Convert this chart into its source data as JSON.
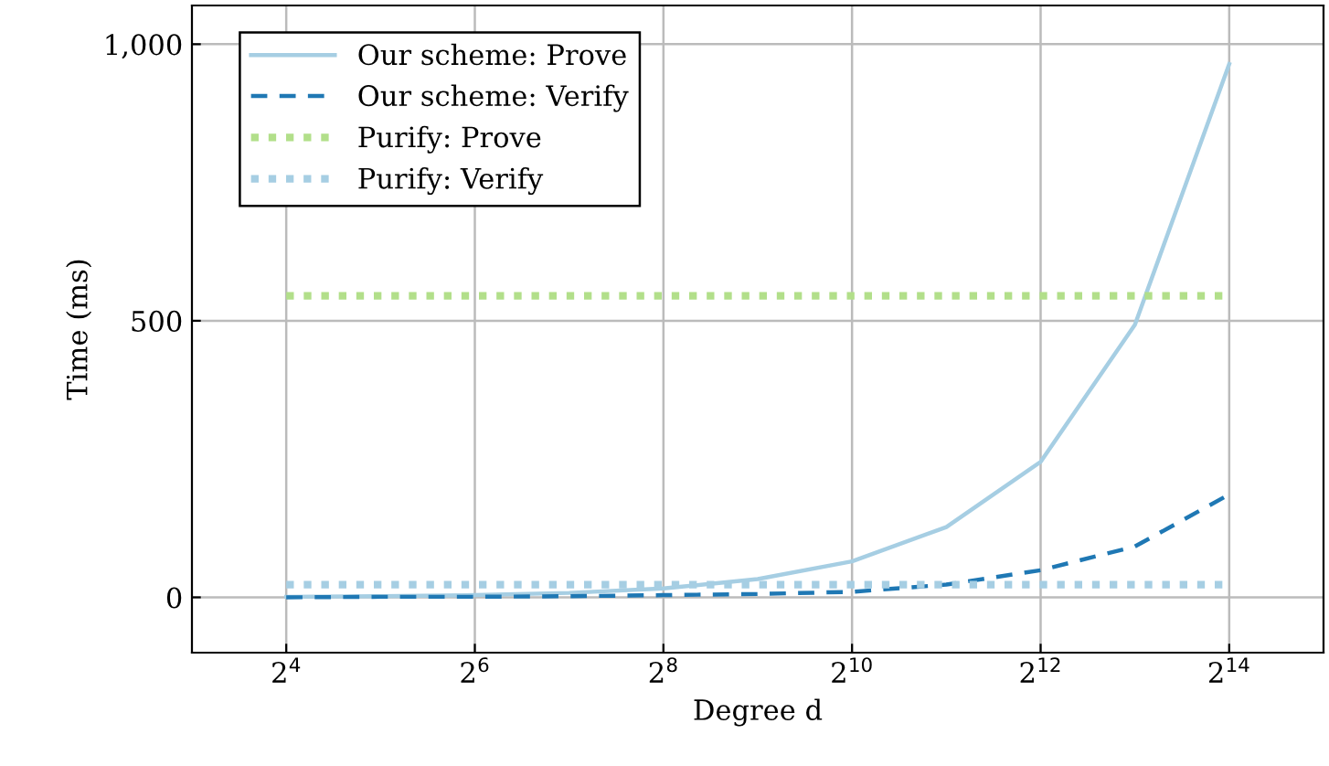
{
  "chart_data": {
    "type": "line",
    "xlabel": "Degree d",
    "ylabel": "Time (ms)",
    "log": "x",
    "xlim": [
      8,
      32768
    ],
    "ylim": [
      -100,
      1070
    ],
    "xticks": [
      {
        "value": 16,
        "label": "2$^{4}$"
      },
      {
        "value": 64,
        "label": "2$^{6}$"
      },
      {
        "value": 256,
        "label": "2$^{8}$"
      },
      {
        "value": 1024,
        "label": "2$^{10}$"
      },
      {
        "value": 4096,
        "label": "2$^{12}$"
      },
      {
        "value": 16384,
        "label": "2$^{14}$"
      }
    ],
    "yticks": [
      0,
      500,
      {
        "value": 1000,
        "label": "1,000"
      }
    ],
    "grid": true,
    "legend": "top left",
    "marker": "none",
    "series": [
      {
        "name": "Our scheme: Prove",
        "color": "#a6cee3",
        "line_style": "solid",
        "x": [
          16,
          32,
          64,
          128,
          256,
          512,
          1024,
          2048,
          4096,
          8192,
          16384
        ],
        "values": [
          1,
          2,
          4,
          8,
          16,
          33,
          65,
          127,
          245,
          493,
          964
        ]
      },
      {
        "name": "Our scheme: Verify",
        "color": "#1f78b4",
        "line_style": "dashed",
        "x": [
          16,
          32,
          64,
          128,
          256,
          512,
          1024,
          2048,
          4096,
          8192,
          16384
        ],
        "values": [
          0,
          1,
          1,
          2,
          4,
          6,
          10,
          23,
          49,
          92,
          186
        ]
      },
      {
        "name": "Purify: Prove",
        "color": "#b2df8a",
        "line_style": "dotted",
        "x": [
          16,
          16384
        ],
        "values": [
          545,
          545
        ]
      },
      {
        "name": "Purify: Verify",
        "color": "#a6cee3",
        "line_style": "dotted",
        "x": [
          16,
          16384
        ],
        "values": [
          23,
          23
        ]
      }
    ]
  }
}
